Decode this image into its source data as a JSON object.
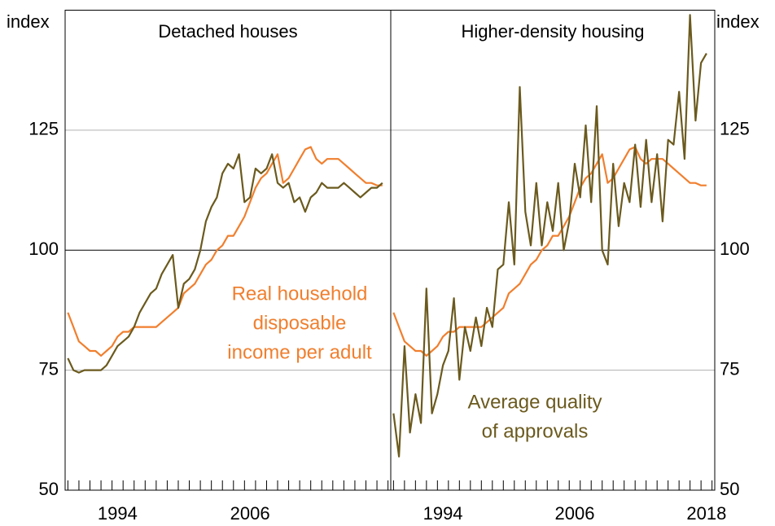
{
  "chart_data": [
    {
      "type": "line",
      "title": "Detached houses",
      "y_label": "index",
      "x": [
        1990,
        1990.5,
        1991,
        1991.5,
        1992,
        1992.5,
        1993,
        1993.5,
        1994,
        1994.5,
        1995,
        1995.5,
        1996,
        1996.5,
        1997,
        1997.5,
        1998,
        1998.5,
        1999,
        1999.5,
        2000,
        2000.5,
        2001,
        2001.5,
        2002,
        2002.5,
        2003,
        2003.5,
        2004,
        2004.5,
        2005,
        2005.5,
        2006,
        2006.5,
        2007,
        2007.5,
        2008,
        2008.5,
        2009,
        2009.5,
        2010,
        2010.5,
        2011,
        2011.5,
        2012,
        2012.5,
        2013,
        2013.5,
        2014,
        2014.5,
        2015,
        2015.5,
        2016,
        2016.5,
        2017,
        2017.5,
        2018,
        2018.5
      ],
      "series": [
        {
          "color": "#f07f2e",
          "values": [
            87,
            84,
            81,
            80,
            79,
            79,
            78,
            79,
            80,
            82,
            83,
            83,
            84,
            84,
            84,
            84,
            84,
            85,
            86,
            87,
            88,
            91,
            92,
            93,
            95,
            97,
            98,
            100,
            101,
            103,
            103,
            105,
            107,
            110,
            113,
            115,
            116,
            118,
            120,
            114,
            115,
            117,
            119,
            121,
            121.5,
            119,
            118,
            119,
            119,
            119,
            118,
            117,
            116,
            115,
            114,
            114,
            113.5,
            113.5
          ]
        },
        {
          "color": "#6b5a1e",
          "values": [
            77.5,
            75,
            74.5,
            75,
            75,
            75,
            75,
            76,
            78,
            80,
            81,
            82,
            84,
            87,
            89,
            91,
            92,
            95,
            97,
            99,
            88,
            93,
            94,
            96,
            100,
            106,
            109,
            111,
            116,
            118,
            117,
            120,
            110,
            111,
            117,
            116,
            117,
            120,
            114,
            113,
            114,
            110,
            111,
            108,
            111,
            112,
            114,
            113,
            113,
            113,
            114,
            113,
            112,
            111,
            112,
            113,
            113,
            114
          ]
        }
      ],
      "annotation": {
        "lines": [
          "Real household",
          "disposable",
          "income per adult"
        ],
        "color": "#f07f2e"
      },
      "xlim": [
        1989.75,
        2019.25
      ],
      "xticks": [
        1994,
        2006
      ],
      "xminorticks": [
        1990,
        1991,
        1992,
        1993,
        1994,
        1995,
        1996,
        1997,
        1998,
        1999,
        2000,
        2001,
        2002,
        2003,
        2004,
        2005,
        2006,
        2007,
        2008,
        2009,
        2010,
        2011,
        2012,
        2013,
        2014,
        2015,
        2016,
        2017,
        2018,
        2019
      ],
      "ylim": [
        50,
        150
      ],
      "yticks": [
        50,
        75,
        100,
        125
      ]
    },
    {
      "type": "line",
      "title": "Higher-density housing",
      "y_label": "index",
      "x": [
        1990,
        1990.5,
        1991,
        1991.5,
        1992,
        1992.5,
        1993,
        1993.5,
        1994,
        1994.5,
        1995,
        1995.5,
        1996,
        1996.5,
        1997,
        1997.5,
        1998,
        1998.5,
        1999,
        1999.5,
        2000,
        2000.5,
        2001,
        2001.5,
        2002,
        2002.5,
        2003,
        2003.5,
        2004,
        2004.5,
        2005,
        2005.5,
        2006,
        2006.5,
        2007,
        2007.5,
        2008,
        2008.5,
        2009,
        2009.5,
        2010,
        2010.5,
        2011,
        2011.5,
        2012,
        2012.5,
        2013,
        2013.5,
        2014,
        2014.5,
        2015,
        2015.5,
        2016,
        2016.5,
        2017,
        2017.5,
        2018,
        2018.5
      ],
      "series": [
        {
          "color": "#f07f2e",
          "values": [
            87,
            84,
            81,
            80,
            79,
            79,
            78,
            79,
            80,
            82,
            83,
            83,
            84,
            84,
            84,
            84,
            84,
            85,
            86,
            87,
            88,
            91,
            92,
            93,
            95,
            97,
            98,
            100,
            101,
            103,
            103,
            105,
            107,
            110,
            113,
            115,
            116,
            118,
            120,
            114,
            115,
            117,
            119,
            121,
            121.5,
            119,
            118,
            119,
            119,
            119,
            118,
            117,
            116,
            115,
            114,
            114,
            113.5,
            113.5
          ]
        },
        {
          "color": "#6b5a1e",
          "values": [
            66,
            57,
            80,
            62,
            70,
            64,
            92,
            66,
            70,
            76,
            79,
            90,
            73,
            84,
            79,
            86,
            80,
            88,
            84,
            96,
            97,
            110,
            97,
            134,
            108,
            101,
            114,
            101,
            110,
            104,
            114,
            100,
            106,
            118,
            111,
            126,
            110,
            130,
            100,
            97,
            118,
            105,
            114,
            110,
            122,
            109,
            123,
            110,
            120,
            106,
            123,
            122,
            133,
            119,
            149,
            127,
            139,
            141
          ]
        }
      ],
      "annotation": {
        "lines": [
          "Average quality",
          "of approvals"
        ],
        "color": "#6b5a1e"
      },
      "xlim": [
        1989.75,
        2019.25
      ],
      "xticks": [
        1994,
        2006,
        2018
      ],
      "xminorticks": [
        1990,
        1991,
        1992,
        1993,
        1994,
        1995,
        1996,
        1997,
        1998,
        1999,
        2000,
        2001,
        2002,
        2003,
        2004,
        2005,
        2006,
        2007,
        2008,
        2009,
        2010,
        2011,
        2012,
        2013,
        2014,
        2015,
        2016,
        2017,
        2018,
        2019
      ],
      "ylim": [
        50,
        150
      ],
      "yticks": [
        50,
        75,
        100,
        125
      ]
    }
  ]
}
